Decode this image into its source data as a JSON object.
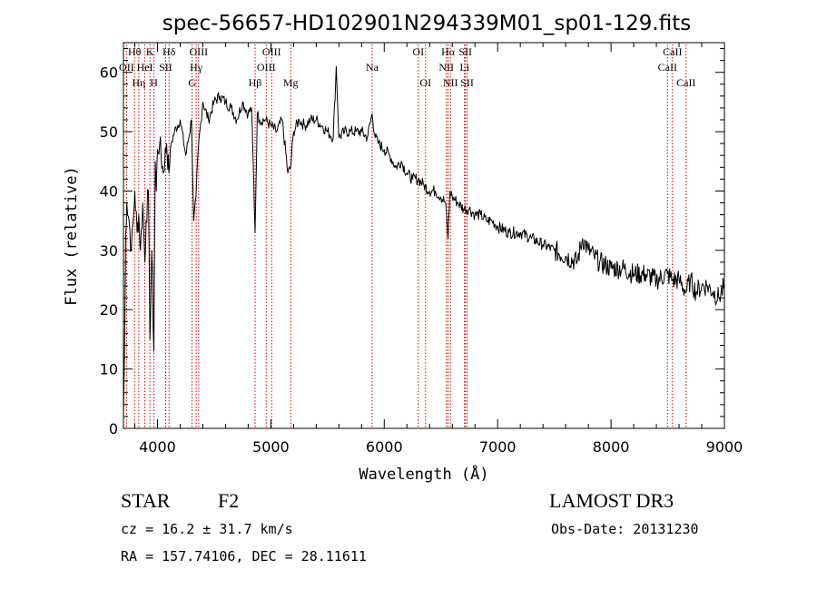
{
  "chart_data": {
    "type": "line",
    "title": "spec-56657-HD102901N294339M01_sp01-129.fits",
    "xlabel": "Wavelength (Å)",
    "ylabel": "Flux (relative)",
    "xlim": [
      3700,
      9000
    ],
    "ylim": [
      0,
      65
    ],
    "x_ticks": [
      4000,
      5000,
      6000,
      7000,
      8000,
      9000
    ],
    "y_ticks": [
      0,
      10,
      20,
      30,
      40,
      50,
      60
    ],
    "grid": false,
    "line_color": "#000000",
    "marker_line_color": "#cc0000",
    "series": [
      {
        "name": "flux",
        "x": [
          3700,
          3710,
          3720,
          3730,
          3750,
          3770,
          3790,
          3800,
          3820,
          3835,
          3850,
          3870,
          3889,
          3900,
          3920,
          3933,
          3950,
          3968,
          3980,
          3990,
          4000,
          4020,
          4050,
          4080,
          4101,
          4120,
          4150,
          4200,
          4250,
          4300,
          4320,
          4340,
          4360,
          4400,
          4450,
          4500,
          4550,
          4600,
          4650,
          4700,
          4750,
          4800,
          4830,
          4861,
          4880,
          4900,
          4950,
          5000,
          5050,
          5100,
          5150,
          5175,
          5200,
          5250,
          5300,
          5350,
          5400,
          5450,
          5500,
          5550,
          5577,
          5600,
          5650,
          5700,
          5750,
          5800,
          5850,
          5893,
          5920,
          5950,
          6000,
          6050,
          6100,
          6150,
          6200,
          6250,
          6300,
          6350,
          6400,
          6450,
          6500,
          6540,
          6563,
          6580,
          6600,
          6650,
          6700,
          6750,
          6800,
          6850,
          6900,
          6950,
          7000,
          7100,
          7200,
          7300,
          7400,
          7500,
          7600,
          7700,
          7750,
          7800,
          7850,
          7900,
          8000,
          8100,
          8200,
          8300,
          8400,
          8498,
          8542,
          8600,
          8662,
          8700,
          8750,
          8800,
          8850,
          8900,
          8950,
          9000
        ],
        "y": [
          2,
          14,
          33,
          38,
          35,
          30,
          36,
          40,
          33,
          36,
          30,
          38,
          28,
          35,
          40,
          15,
          30,
          13,
          45,
          40,
          47,
          48,
          43,
          48,
          43,
          48,
          50,
          52,
          46,
          52,
          35,
          39,
          47,
          55,
          52,
          55,
          56,
          55,
          54,
          52,
          55,
          53,
          54,
          33,
          53,
          52,
          52,
          51,
          50,
          52,
          43,
          44,
          50,
          52,
          51,
          52,
          52,
          51,
          50,
          49,
          61,
          49,
          50,
          50,
          50,
          50,
          49,
          53,
          49,
          48,
          47,
          46,
          44,
          45,
          43,
          42,
          42,
          41,
          40,
          40,
          39,
          38,
          32,
          40,
          39,
          38,
          37,
          37,
          36,
          36,
          35,
          35,
          34,
          33,
          33,
          32,
          31,
          30,
          29,
          28,
          32,
          30,
          29,
          28,
          27,
          27,
          26,
          26,
          25,
          26,
          25,
          25,
          23,
          25,
          23,
          24,
          24,
          23,
          22,
          24
        ]
      }
    ],
    "lines": [
      {
        "label": "Hθ",
        "x": 3798,
        "row": 0
      },
      {
        "label": "OII",
        "x": 3727,
        "row": 1
      },
      {
        "label": "Hη",
        "x": 3835,
        "row": 2
      },
      {
        "label": "K",
        "x": 3934,
        "row": 0
      },
      {
        "label": "HeI",
        "x": 3889,
        "row": 1
      },
      {
        "label": "SII",
        "x": 4072,
        "row": 1
      },
      {
        "label": "H",
        "x": 3969,
        "row": 2
      },
      {
        "label": "Hδ",
        "x": 4102,
        "row": 0
      },
      {
        "label": "OIII",
        "x": 4363,
        "row": 0
      },
      {
        "label": "Hγ",
        "x": 4341,
        "row": 1
      },
      {
        "label": "G",
        "x": 4305,
        "row": 2
      },
      {
        "label": "Hβ",
        "x": 4861,
        "row": 2
      },
      {
        "label": "OIII",
        "x": 5007,
        "row": 0
      },
      {
        "label": "OIII",
        "x": 4959,
        "row": 1
      },
      {
        "label": "Mg",
        "x": 5175,
        "row": 2
      },
      {
        "label": "Na",
        "x": 5893,
        "row": 1
      },
      {
        "label": "OI",
        "x": 6300,
        "row": 0
      },
      {
        "label": "OI",
        "x": 6364,
        "row": 2
      },
      {
        "label": "Hα",
        "x": 6563,
        "row": 0
      },
      {
        "label": "NII",
        "x": 6548,
        "row": 1
      },
      {
        "label": "NII",
        "x": 6584,
        "row": 2
      },
      {
        "label": "SII",
        "x": 6716,
        "row": 0
      },
      {
        "label": "Li",
        "x": 6708,
        "row": 1
      },
      {
        "label": "SII",
        "x": 6731,
        "row": 2
      },
      {
        "label": "CaII",
        "x": 8542,
        "row": 0
      },
      {
        "label": "CaII",
        "x": 8498,
        "row": 1
      },
      {
        "label": "CaII",
        "x": 8662,
        "row": 2
      }
    ]
  },
  "info": {
    "class": "STAR",
    "subclass": "F2",
    "survey": "LAMOST DR3",
    "cz": "cz = 16.2 ± 31.7 km/s",
    "obs_date": "Obs-Date: 20131230",
    "radec": "RA = 157.74106, DEC =  28.11611"
  }
}
